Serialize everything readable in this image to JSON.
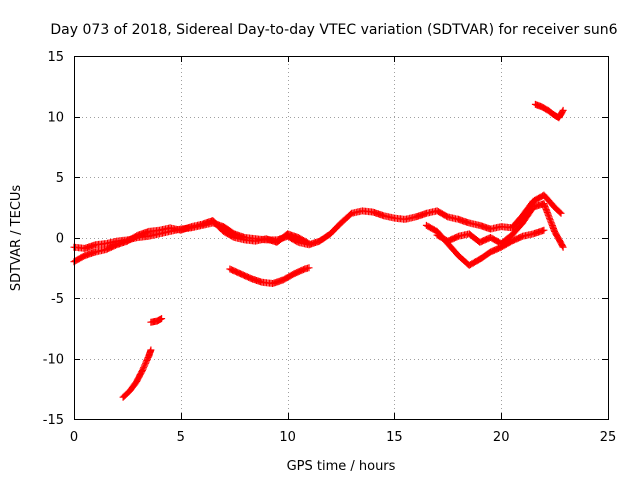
{
  "chart_data": {
    "type": "scatter",
    "title": "Day 073 of 2018, Sidereal Day-to-day VTEC variation (SDTVAR) for receiver sun6",
    "xlabel": "GPS time / hours",
    "ylabel": "SDTVAR / TECUs",
    "xlim": [
      0,
      25
    ],
    "ylim": [
      -15,
      15
    ],
    "xticks": [
      0,
      5,
      10,
      15,
      20,
      25
    ],
    "yticks": [
      -15,
      -10,
      -5,
      0,
      5,
      10,
      15
    ],
    "grid": true,
    "marker": "+",
    "color": "#ff0000",
    "series": [
      {
        "name": "main-trace-a",
        "points": [
          [
            0.0,
            -0.8
          ],
          [
            0.5,
            -0.9
          ],
          [
            1.0,
            -0.6
          ],
          [
            1.5,
            -0.5
          ],
          [
            2.0,
            -0.3
          ],
          [
            2.5,
            -0.2
          ],
          [
            3.0,
            0.0
          ],
          [
            3.5,
            0.1
          ],
          [
            4.0,
            0.3
          ],
          [
            4.5,
            0.5
          ],
          [
            5.0,
            0.7
          ],
          [
            5.5,
            0.8
          ],
          [
            6.0,
            1.0
          ],
          [
            6.5,
            1.2
          ],
          [
            7.0,
            0.9
          ],
          [
            7.5,
            0.3
          ],
          [
            8.0,
            0.0
          ],
          [
            8.5,
            -0.1
          ],
          [
            9.0,
            -0.2
          ],
          [
            9.5,
            -0.2
          ],
          [
            10.0,
            0.1
          ],
          [
            10.5,
            -0.4
          ],
          [
            11.0,
            -0.6
          ],
          [
            11.5,
            -0.3
          ],
          [
            12.0,
            0.3
          ],
          [
            12.5,
            1.2
          ],
          [
            13.0,
            2.0
          ],
          [
            13.5,
            2.2
          ],
          [
            14.0,
            2.1
          ],
          [
            14.5,
            1.8
          ],
          [
            15.0,
            1.6
          ],
          [
            15.5,
            1.5
          ],
          [
            16.0,
            1.7
          ],
          [
            16.5,
            2.0
          ],
          [
            17.0,
            2.2
          ],
          [
            17.5,
            1.7
          ],
          [
            18.0,
            1.5
          ],
          [
            18.5,
            1.2
          ],
          [
            19.0,
            1.0
          ],
          [
            19.5,
            0.7
          ],
          [
            20.0,
            0.9
          ],
          [
            20.5,
            0.8
          ],
          [
            21.0,
            1.8
          ],
          [
            21.5,
            3.0
          ],
          [
            22.0,
            3.5
          ],
          [
            22.5,
            2.5
          ],
          [
            22.8,
            2.0
          ]
        ]
      },
      {
        "name": "main-trace-b",
        "points": [
          [
            0.0,
            -2.0
          ],
          [
            0.5,
            -1.5
          ],
          [
            1.0,
            -1.2
          ],
          [
            1.5,
            -1.0
          ],
          [
            2.0,
            -0.6
          ],
          [
            2.5,
            -0.3
          ],
          [
            3.0,
            0.2
          ],
          [
            3.5,
            0.5
          ],
          [
            4.0,
            0.6
          ],
          [
            4.5,
            0.8
          ],
          [
            5.0,
            0.6
          ],
          [
            5.5,
            0.9
          ],
          [
            6.0,
            1.1
          ],
          [
            6.5,
            1.4
          ],
          [
            7.0,
            0.5
          ],
          [
            7.5,
            0.0
          ],
          [
            8.0,
            -0.2
          ],
          [
            8.5,
            -0.3
          ],
          [
            9.0,
            -0.1
          ],
          [
            9.5,
            -0.4
          ],
          [
            10.0,
            0.3
          ],
          [
            10.5,
            0.0
          ],
          [
            11.0,
            -0.5
          ]
        ]
      },
      {
        "name": "secondary-trace",
        "points": [
          [
            16.5,
            1.0
          ],
          [
            17.0,
            0.5
          ],
          [
            17.5,
            -0.5
          ],
          [
            18.0,
            -1.5
          ],
          [
            18.5,
            -2.3
          ],
          [
            19.0,
            -1.8
          ],
          [
            19.5,
            -1.2
          ],
          [
            20.0,
            -0.8
          ],
          [
            20.5,
            -0.3
          ],
          [
            21.0,
            0.1
          ],
          [
            21.5,
            0.3
          ],
          [
            22.0,
            0.6
          ]
        ]
      },
      {
        "name": "loop-trace",
        "points": [
          [
            17.0,
            0.2
          ],
          [
            17.5,
            -0.3
          ],
          [
            18.0,
            0.1
          ],
          [
            18.5,
            0.3
          ],
          [
            19.0,
            -0.4
          ],
          [
            19.5,
            0.0
          ],
          [
            20.0,
            -0.5
          ],
          [
            20.5,
            0.2
          ],
          [
            21.0,
            1.2
          ],
          [
            21.5,
            2.5
          ],
          [
            22.0,
            2.8
          ],
          [
            22.5,
            0.5
          ],
          [
            22.9,
            -0.8
          ]
        ]
      },
      {
        "name": "depressed-segment",
        "points": [
          [
            7.3,
            -2.6
          ],
          [
            7.8,
            -3.0
          ],
          [
            8.3,
            -3.4
          ],
          [
            8.8,
            -3.7
          ],
          [
            9.3,
            -3.8
          ],
          [
            9.8,
            -3.5
          ],
          [
            10.3,
            -3.0
          ],
          [
            10.8,
            -2.6
          ],
          [
            11.0,
            -2.5
          ]
        ]
      },
      {
        "name": "steep-segment",
        "points": [
          [
            2.3,
            -13.2
          ],
          [
            2.6,
            -12.7
          ],
          [
            2.9,
            -12.0
          ],
          [
            3.2,
            -11.0
          ],
          [
            3.5,
            -9.8
          ],
          [
            3.6,
            -9.3
          ]
        ]
      },
      {
        "name": "short-segment",
        "points": [
          [
            3.6,
            -7.0
          ],
          [
            3.9,
            -6.9
          ],
          [
            4.1,
            -6.7
          ]
        ]
      },
      {
        "name": "upper-segment",
        "points": [
          [
            21.6,
            11.0
          ],
          [
            21.9,
            10.8
          ],
          [
            22.2,
            10.5
          ],
          [
            22.5,
            10.1
          ],
          [
            22.7,
            9.9
          ],
          [
            22.9,
            10.5
          ]
        ]
      }
    ]
  }
}
